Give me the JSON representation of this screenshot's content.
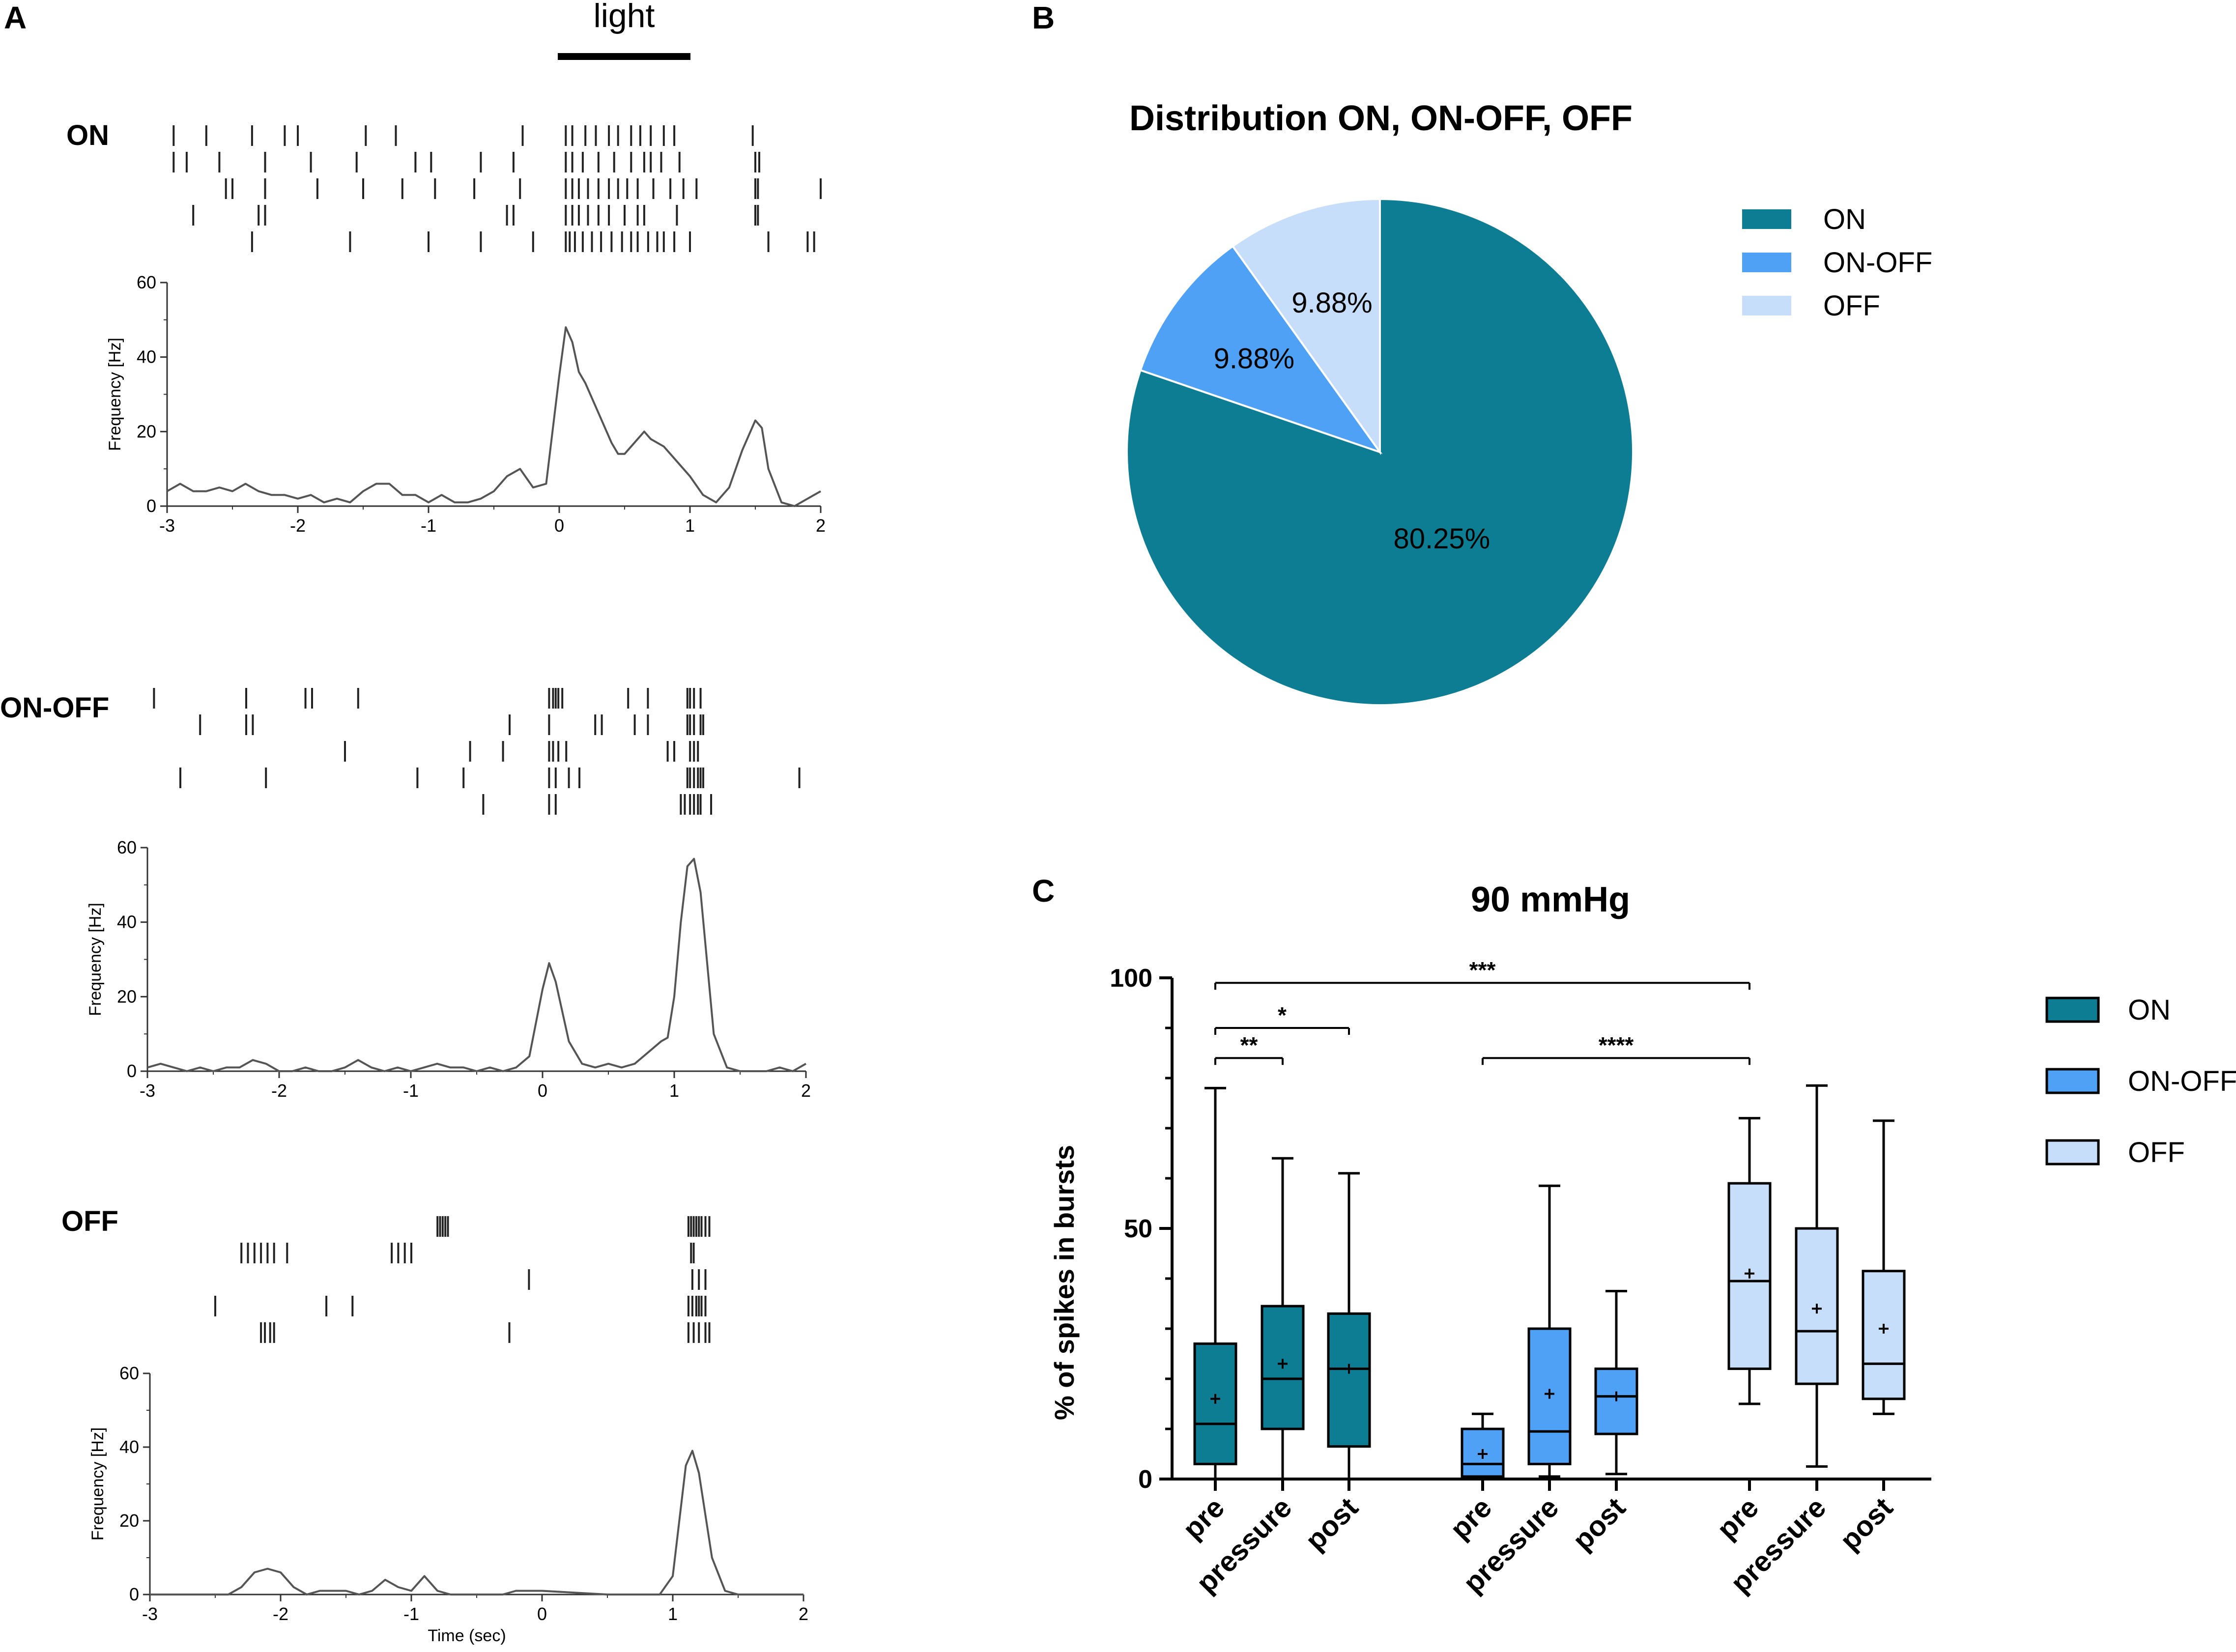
{
  "panels": {
    "A": {
      "label": "A",
      "light_label": "light",
      "x_title": "Time (sec)",
      "y_title": "Frequency [Hz]",
      "x_ticks": [
        "-3",
        "-2",
        "-1",
        "0",
        "1",
        "2"
      ],
      "y_ticks": [
        "0",
        "20",
        "40",
        "60"
      ]
    },
    "B": {
      "label": "B"
    },
    "C": {
      "label": "C"
    }
  },
  "chart_data": [
    {
      "type": "line",
      "panel": "A",
      "name": "ON",
      "title": "ON",
      "xlabel": "",
      "ylabel": "Frequency [Hz]",
      "xlim": [
        -3,
        2
      ],
      "ylim": [
        0,
        60
      ],
      "x": [
        -3,
        -2.9,
        -2.8,
        -2.7,
        -2.6,
        -2.5,
        -2.4,
        -2.3,
        -2.2,
        -2.1,
        -2,
        -1.9,
        -1.8,
        -1.7,
        -1.6,
        -1.5,
        -1.4,
        -1.3,
        -1.2,
        -1.1,
        -1,
        -0.9,
        -0.8,
        -0.7,
        -0.6,
        -0.5,
        -0.4,
        -0.3,
        -0.2,
        -0.1,
        0,
        0.05,
        0.1,
        0.15,
        0.2,
        0.3,
        0.4,
        0.45,
        0.5,
        0.6,
        0.65,
        0.7,
        0.8,
        0.9,
        1,
        1.1,
        1.2,
        1.3,
        1.4,
        1.5,
        1.55,
        1.6,
        1.7,
        1.8,
        1.9,
        2
      ],
      "y": [
        4,
        6,
        4,
        4,
        5,
        4,
        6,
        4,
        3,
        3,
        2,
        3,
        1,
        2,
        1,
        4,
        6,
        6,
        3,
        3,
        1,
        3,
        1,
        1,
        2,
        4,
        8,
        10,
        5,
        6,
        35,
        48,
        44,
        36,
        33,
        25,
        17,
        14,
        14,
        18,
        20,
        18,
        16,
        12,
        8,
        3,
        1,
        5,
        15,
        23,
        21,
        10,
        1,
        0,
        2,
        4
      ],
      "raster": [
        [
          -2.95,
          -2.7,
          -2.35,
          -2.1,
          -2.0,
          -1.48,
          -1.25,
          -0.28,
          0.05,
          0.1,
          0.2,
          0.28,
          0.38,
          0.45,
          0.55,
          0.62,
          0.7,
          0.8,
          0.88,
          1.48
        ],
        [
          -2.95,
          -2.85,
          -2.6,
          -2.25,
          -1.9,
          -1.55,
          -1.1,
          -0.98,
          -0.6,
          -0.35,
          0.05,
          0.1,
          0.18,
          0.3,
          0.42,
          0.55,
          0.65,
          0.7,
          0.78,
          0.92,
          1.5,
          1.53
        ],
        [
          -2.55,
          -2.5,
          -2.25,
          -1.85,
          -1.5,
          -1.2,
          -0.95,
          -0.65,
          -0.3,
          0.05,
          0.1,
          0.15,
          0.22,
          0.3,
          0.38,
          0.45,
          0.52,
          0.6,
          0.72,
          0.85,
          0.95,
          1.05,
          1.5,
          1.52,
          2.0
        ],
        [
          -2.8,
          -2.3,
          -2.25,
          -0.4,
          -0.35,
          0.05,
          0.1,
          0.15,
          0.22,
          0.3,
          0.38,
          0.5,
          0.6,
          0.65,
          0.9,
          1.5,
          1.52
        ],
        [
          -2.35,
          -1.6,
          -1.0,
          -0.6,
          -0.2,
          0.05,
          0.08,
          0.12,
          0.18,
          0.25,
          0.32,
          0.4,
          0.48,
          0.55,
          0.6,
          0.68,
          0.75,
          0.8,
          0.88,
          1.0,
          1.6,
          1.9,
          1.95
        ]
      ]
    },
    {
      "type": "line",
      "panel": "A",
      "name": "ON-OFF",
      "title": "ON-OFF",
      "xlabel": "",
      "ylabel": "Frequency [Hz]",
      "xlim": [
        -3,
        2
      ],
      "ylim": [
        0,
        60
      ],
      "x": [
        -3,
        -2.9,
        -2.8,
        -2.7,
        -2.6,
        -2.5,
        -2.4,
        -2.3,
        -2.2,
        -2.1,
        -2,
        -1.9,
        -1.8,
        -1.7,
        -1.6,
        -1.5,
        -1.4,
        -1.3,
        -1.2,
        -1.1,
        -1,
        -0.9,
        -0.8,
        -0.7,
        -0.6,
        -0.5,
        -0.4,
        -0.3,
        -0.2,
        -0.1,
        0,
        0.05,
        0.1,
        0.2,
        0.3,
        0.4,
        0.5,
        0.6,
        0.7,
        0.8,
        0.9,
        0.95,
        1,
        1.05,
        1.1,
        1.15,
        1.2,
        1.3,
        1.4,
        1.5,
        1.6,
        1.7,
        1.8,
        1.9,
        2
      ],
      "y": [
        1,
        2,
        1,
        0,
        1,
        0,
        1,
        1,
        3,
        2,
        0,
        0,
        1,
        0,
        0,
        1,
        3,
        1,
        0,
        1,
        0,
        1,
        2,
        1,
        1,
        0,
        1,
        0,
        1,
        4,
        22,
        29,
        24,
        8,
        2,
        1,
        2,
        1,
        2,
        5,
        8,
        9,
        20,
        40,
        55,
        57,
        48,
        10,
        1,
        0,
        0,
        0,
        1,
        0,
        2
      ],
      "raster": [
        [
          -2.95,
          -2.25,
          -1.8,
          -1.75,
          -1.4,
          0.05,
          0.08,
          0.1,
          0.12,
          0.15,
          0.65,
          0.8,
          1.1,
          1.12,
          1.15,
          1.2
        ],
        [
          -2.6,
          -2.25,
          -2.2,
          -0.25,
          0.05,
          0.4,
          0.45,
          0.7,
          0.8,
          1.1,
          1.12,
          1.15,
          1.2,
          1.22
        ],
        [
          -1.5,
          -0.55,
          -0.3,
          0.05,
          0.08,
          0.12,
          0.18,
          0.95,
          1.0,
          1.12,
          1.15,
          1.18
        ],
        [
          -2.75,
          -2.1,
          -0.95,
          -0.6,
          0.05,
          0.1,
          0.2,
          0.28,
          1.1,
          1.12,
          1.15,
          1.18,
          1.2,
          1.22,
          1.95
        ],
        [
          -0.45,
          0.05,
          0.1,
          1.05,
          1.08,
          1.12,
          1.15,
          1.18,
          1.2,
          1.28
        ]
      ]
    },
    {
      "type": "line",
      "panel": "A",
      "name": "OFF",
      "title": "OFF",
      "xlabel": "Time (sec)",
      "ylabel": "Frequency [Hz]",
      "xlim": [
        -3,
        2
      ],
      "ylim": [
        0,
        60
      ],
      "x": [
        -3,
        -2.8,
        -2.6,
        -2.4,
        -2.3,
        -2.2,
        -2.1,
        -2,
        -1.9,
        -1.8,
        -1.7,
        -1.6,
        -1.5,
        -1.4,
        -1.3,
        -1.2,
        -1.1,
        -1,
        -0.9,
        -0.8,
        -0.7,
        -0.6,
        -0.5,
        -0.4,
        -0.3,
        -0.2,
        -0.1,
        0,
        0.5,
        0.8,
        0.9,
        1,
        1.05,
        1.1,
        1.15,
        1.2,
        1.3,
        1.4,
        1.5,
        2
      ],
      "y": [
        0,
        0,
        0,
        0,
        2,
        6,
        7,
        6,
        2,
        0,
        1,
        1,
        1,
        0,
        1,
        4,
        2,
        1,
        5,
        1,
        0,
        0,
        0,
        0,
        0,
        1,
        1,
        1,
        0,
        0,
        0,
        5,
        20,
        35,
        39,
        33,
        10,
        1,
        0,
        0
      ],
      "raster": [
        [
          -0.8,
          -0.78,
          -0.76,
          -0.74,
          -0.72,
          1.12,
          1.14,
          1.16,
          1.18,
          1.2,
          1.22,
          1.25,
          1.28
        ],
        [
          -2.3,
          -2.25,
          -2.2,
          -2.15,
          -2.1,
          -2.05,
          -1.95,
          -1.15,
          -1.1,
          -1.05,
          -1.0,
          1.14,
          1.16
        ],
        [
          -0.1,
          1.15,
          1.2,
          1.25
        ],
        [
          -2.5,
          -1.65,
          -1.45,
          1.12,
          1.15,
          1.18,
          1.2,
          1.22,
          1.25
        ],
        [
          -2.15,
          -2.12,
          -2.08,
          -2.05,
          -0.25,
          1.12,
          1.16,
          1.2,
          1.25,
          1.28
        ]
      ]
    },
    {
      "type": "pie",
      "panel": "B",
      "title": "Distribution ON, ON-OFF, OFF",
      "labels": [
        "ON",
        "ON-OFF",
        "OFF"
      ],
      "values": [
        80.25,
        9.88,
        9.88
      ],
      "value_labels": [
        "80.25%",
        "9.88%",
        "9.88%"
      ],
      "colors": [
        "#0c7d92",
        "#4ea1f5",
        "#c6defa"
      ],
      "legend_position": "right"
    },
    {
      "type": "box",
      "panel": "C",
      "title": "90 mmHg",
      "ylabel": "% of spikes in bursts",
      "ylim": [
        0,
        100
      ],
      "yticks": [
        "0",
        "50",
        "100"
      ],
      "groups": [
        "ON",
        "ON-OFF",
        "OFF"
      ],
      "categories": [
        "pre",
        "pressure",
        "post"
      ],
      "colors": [
        "#0c7d92",
        "#4ea1f5",
        "#c6defa"
      ],
      "boxes": [
        {
          "group": "ON",
          "category": "pre",
          "min": 0,
          "q1": 3,
          "median": 11,
          "q3": 27,
          "max": 78,
          "mean": 16
        },
        {
          "group": "ON",
          "category": "pressure",
          "min": 0,
          "q1": 10,
          "median": 20,
          "q3": 34.5,
          "max": 64,
          "mean": 23
        },
        {
          "group": "ON",
          "category": "post",
          "min": 0,
          "q1": 6.5,
          "median": 22,
          "q3": 33,
          "max": 61,
          "mean": 22
        },
        {
          "group": "ON-OFF",
          "category": "pre",
          "min": 0,
          "q1": 0.5,
          "median": 3,
          "q3": 10,
          "max": 13,
          "mean": 5
        },
        {
          "group": "ON-OFF",
          "category": "pressure",
          "min": 0.5,
          "q1": 3,
          "median": 9.5,
          "q3": 30,
          "max": 58.5,
          "mean": 17
        },
        {
          "group": "ON-OFF",
          "category": "post",
          "min": 1,
          "q1": 9,
          "median": 16.5,
          "q3": 22,
          "max": 37.5,
          "mean": 16.5
        },
        {
          "group": "OFF",
          "category": "pre",
          "min": 15,
          "q1": 22,
          "median": 39.5,
          "q3": 59,
          "max": 72,
          "mean": 41
        },
        {
          "group": "OFF",
          "category": "pressure",
          "min": 2.5,
          "q1": 19,
          "median": 29.5,
          "q3": 50,
          "max": 78.5,
          "mean": 34
        },
        {
          "group": "OFF",
          "category": "post",
          "min": 13,
          "q1": 16,
          "median": 23,
          "q3": 41.5,
          "max": 71.5,
          "mean": 30
        }
      ],
      "significance": [
        {
          "from": 0,
          "to": 1,
          "y": 84,
          "label": "**"
        },
        {
          "from": 0,
          "to": 2,
          "y": 90,
          "label": "*"
        },
        {
          "from": 0,
          "to": 6,
          "y": 99,
          "label": "***"
        },
        {
          "from": 3,
          "to": 6,
          "y": 84,
          "label": "****"
        }
      ]
    }
  ]
}
